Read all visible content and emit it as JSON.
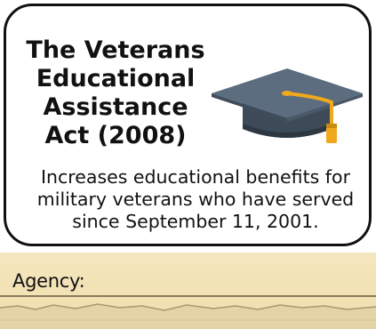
{
  "card": {
    "title_lines": [
      "The Veterans",
      "Educational",
      "Assistance",
      "Act (2008)"
    ],
    "description_lines": [
      "Increases educational benefits for",
      "military veterans who have served",
      "since September 11, 2001."
    ],
    "icon": "graduation-cap-icon"
  },
  "agency": {
    "label": "Agency:"
  },
  "colors": {
    "card_border": "#111111",
    "cap_top": "#5b6d7e",
    "cap_tassel": "#f0a81c",
    "paper": "#f2e2b4"
  }
}
